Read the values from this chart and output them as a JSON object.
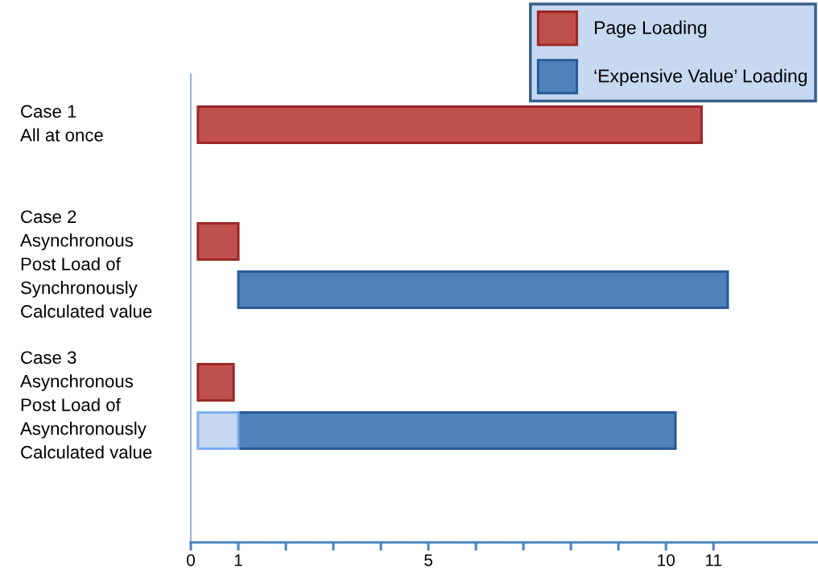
{
  "chart_data": {
    "type": "bar",
    "orientation": "horizontal",
    "categories": [
      "Case 1\nAll at once",
      "Case 2\nAsynchronous\nPost Load of\nSynchronously\nCalculated value",
      "Case 3\nAsynchronous\nPost Load of\nAsynchronously\nCalculated value"
    ],
    "series": [
      {
        "name": "Page Loading",
        "color": "#c0504d",
        "values": [
          10.6,
          0.85,
          0.75
        ],
        "base": [
          0.15,
          0.15,
          0.15
        ]
      },
      {
        "name": "‘Expensive Value’ Loading",
        "color": "#4f81bd",
        "values": [
          null,
          10.3,
          9.2
        ],
        "base": [
          null,
          1.0,
          1.0
        ]
      },
      {
        "color": "#c6d9f1",
        "values": [
          null,
          null,
          0.85
        ],
        "base": [
          null,
          null,
          0.15
        ]
      }
    ],
    "xlim": [
      0,
      13.2
    ],
    "xticks": [
      0,
      1,
      {
        "value": 2,
        "label": null
      },
      {
        "value": 3,
        "label": null
      },
      {
        "value": 4,
        "label": null
      },
      5,
      {
        "value": 6,
        "label": null
      },
      {
        "value": 7,
        "label": null
      },
      {
        "value": 8,
        "label": null
      },
      {
        "value": 9,
        "label": null
      },
      10,
      11
    ],
    "legend": "top right"
  }
}
